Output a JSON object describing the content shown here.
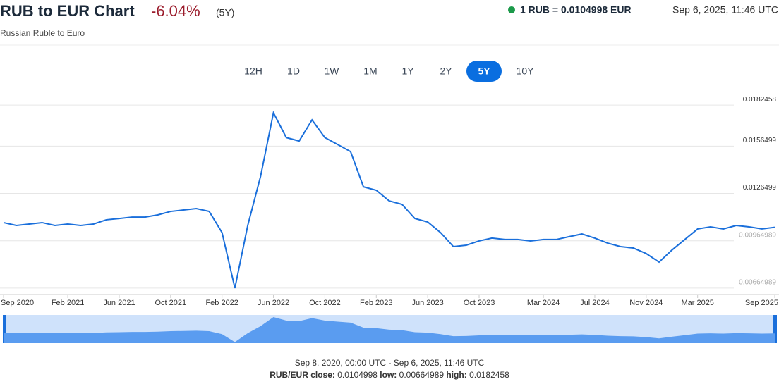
{
  "header": {
    "title": "RUB to EUR Chart",
    "change": "-6.04%",
    "period": "(5Y)",
    "rate": "1 RUB = 0.0104998 EUR",
    "timestamp": "Sep 6, 2025, 11:46 UTC",
    "subtitle": "Russian Ruble to Euro"
  },
  "ranges": {
    "buttons": [
      "12H",
      "1D",
      "1W",
      "1M",
      "1Y",
      "2Y",
      "5Y",
      "10Y"
    ],
    "active": "5Y"
  },
  "chart_data": {
    "type": "line",
    "series": [
      {
        "name": "RUB/EUR",
        "color": "#1a6fdb",
        "values": [
          0.0108,
          0.01062,
          0.01071,
          0.0108,
          0.01062,
          0.01071,
          0.01062,
          0.01071,
          0.01098,
          0.01106,
          0.01115,
          0.01115,
          0.01129,
          0.01151,
          0.0116,
          0.01169,
          0.01151,
          0.01017,
          0.00665,
          0.01062,
          0.01374,
          0.01776,
          0.01619,
          0.01597,
          0.01731,
          0.01619,
          0.01575,
          0.0153,
          0.01307,
          0.01285,
          0.01218,
          0.01196,
          0.01106,
          0.01084,
          0.01017,
          0.00928,
          0.00937,
          0.00964,
          0.00982,
          0.00973,
          0.00973,
          0.00964,
          0.00973,
          0.00973,
          0.00991,
          0.01008,
          0.00982,
          0.0095,
          0.00928,
          0.00919,
          0.00884,
          0.0083,
          0.00906,
          0.00973,
          0.0104,
          0.01053,
          0.0104,
          0.01062,
          0.01053,
          0.0104,
          0.0105
        ]
      }
    ],
    "x": [
      "2020-09",
      "2020-10",
      "2020-11",
      "2020-12",
      "2021-01",
      "2021-02",
      "2021-03",
      "2021-04",
      "2021-05",
      "2021-06",
      "2021-07",
      "2021-08",
      "2021-09",
      "2021-10",
      "2021-11",
      "2021-12",
      "2022-01",
      "2022-02",
      "2022-03",
      "2022-04",
      "2022-05",
      "2022-06",
      "2022-07",
      "2022-08",
      "2022-09",
      "2022-10",
      "2022-11",
      "2022-12",
      "2023-01",
      "2023-02",
      "2023-03",
      "2023-04",
      "2023-05",
      "2023-06",
      "2023-07",
      "2023-08",
      "2023-09",
      "2023-10",
      "2023-11",
      "2023-12",
      "2024-01",
      "2024-02",
      "2024-03",
      "2024-04",
      "2024-05",
      "2024-06",
      "2024-07",
      "2024-08",
      "2024-09",
      "2024-10",
      "2024-11",
      "2024-12",
      "2025-01",
      "2025-02",
      "2025-03",
      "2025-04",
      "2025-05",
      "2025-06",
      "2025-07",
      "2025-08",
      "2025-09"
    ],
    "xlim": [
      "2020-09",
      "2025-09"
    ],
    "xticks": [
      {
        "value": "2020-09",
        "label": "Sep 2020"
      },
      {
        "value": "2021-02",
        "label": "Feb 2021"
      },
      {
        "value": "2021-06",
        "label": "Jun 2021"
      },
      {
        "value": "2021-10",
        "label": "Oct 2021"
      },
      {
        "value": "2022-02",
        "label": "Feb 2022"
      },
      {
        "value": "2022-06",
        "label": "Jun 2022"
      },
      {
        "value": "2022-10",
        "label": "Oct 2022"
      },
      {
        "value": "2023-02",
        "label": "Feb 2023"
      },
      {
        "value": "2023-06",
        "label": "Jun 2023"
      },
      {
        "value": "2023-10",
        "label": "Oct 2023"
      },
      {
        "value": "2024-03",
        "label": "Mar 2024"
      },
      {
        "value": "2024-07",
        "label": "Jul 2024"
      },
      {
        "value": "2024-11",
        "label": "Nov 2024"
      },
      {
        "value": "2025-03",
        "label": "Mar 2025"
      },
      {
        "value": "2025-09",
        "label": "Sep 2025"
      }
    ],
    "ylim": [
      0.0062,
      0.0187
    ],
    "yticks": [
      0.00664989,
      0.00964989,
      0.0126499,
      0.0156499,
      0.0182458
    ],
    "grid": true
  },
  "footer": {
    "range": "Sep 8, 2020, 00:00 UTC - Sep 6, 2025, 11:46 UTC",
    "close_label": "RUB/EUR close:",
    "close": "0.0104998",
    "low_label": "low:",
    "low": "0.00664989",
    "high_label": "high:",
    "high": "0.0182458"
  }
}
